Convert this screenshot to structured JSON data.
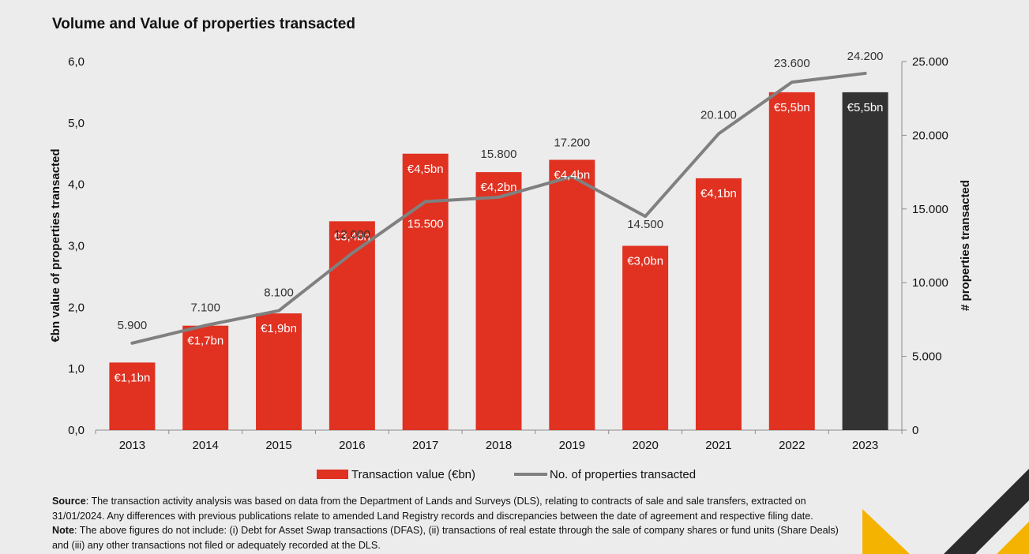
{
  "title": "Volume and Value of properties transacted",
  "chart_data": {
    "type": "bar",
    "categories": [
      "2013",
      "2014",
      "2015",
      "2016",
      "2017",
      "2018",
      "2019",
      "2020",
      "2021",
      "2022",
      "2023"
    ],
    "series": [
      {
        "name": "Transaction value (€bn)",
        "type": "bar",
        "axis": "left",
        "values": [
          1.1,
          1.7,
          1.9,
          3.4,
          4.5,
          4.2,
          4.4,
          3.0,
          4.1,
          5.5,
          5.5
        ],
        "labels": [
          "€1,1bn",
          "€1,7bn",
          "€1,9bn",
          "€3,4bn",
          "€4,5bn",
          "€4,2bn",
          "€4,4bn",
          "€3,0bn",
          "€4,1bn",
          "€5,5bn",
          "€5,5bn"
        ],
        "color": "#e03121",
        "highlight_color": "#333333",
        "highlight_index": 10
      },
      {
        "name": "No. of properties transacted",
        "type": "line",
        "axis": "right",
        "values": [
          5900,
          7100,
          8100,
          12000,
          15500,
          15800,
          17200,
          14500,
          20100,
          23600,
          24200
        ],
        "labels": [
          "5.900",
          "7.100",
          "8.100",
          "12.000",
          "15.500",
          "15.800",
          "17.200",
          "14.500",
          "20.100",
          "23.600",
          "24.200"
        ],
        "color": "#808080"
      }
    ],
    "ylabel": "€bn value of properties transacted",
    "ylabel_right": "# properties transacted",
    "ylim": [
      0,
      6
    ],
    "yticks": [
      "0,0",
      "1,0",
      "2,0",
      "3,0",
      "4,0",
      "5,0",
      "6,0"
    ],
    "ylim_right": [
      0,
      25000
    ],
    "yticks_right": [
      "0",
      "5.000",
      "10.000",
      "15.000",
      "20.000",
      "25.000"
    ],
    "grid": false,
    "legend_position": "bottom"
  },
  "notes": {
    "source_label": "Source",
    "source_text": ": The transaction activity analysis was based on data from the Department of Lands and Surveys (DLS), relating to contracts of sale and sale transfers, extracted on 31/01/2024. Any differences with previous publications relate to amended Land Registry records and discrepancies between the date of agreement and respective filing date.",
    "note_label": "Note",
    "note_text": ": The above figures do not include: (i) Debt for Asset Swap transactions (DFAS), (ii) transactions of real estate through the sale of company shares or fund units (Share Deals) and (iii) any other transactions not filed or adequately recorded at the DLS."
  },
  "colors": {
    "background": "#ececec",
    "decoration_yellow": "#f5b301",
    "decoration_dark": "#2b2b2b"
  }
}
